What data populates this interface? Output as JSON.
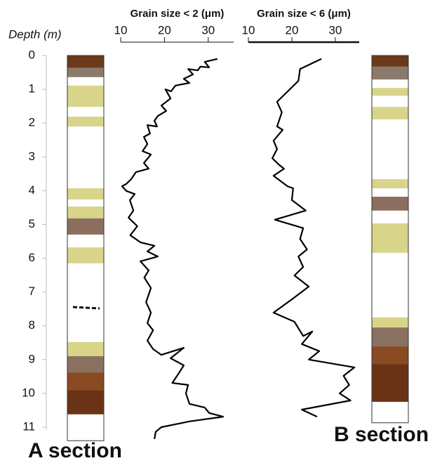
{
  "depth_axis": {
    "label": "Depth (m)",
    "ylim": [
      0,
      11
    ],
    "yticks": [
      0,
      1,
      2,
      3,
      4,
      5,
      6,
      7,
      8,
      9,
      10,
      11
    ]
  },
  "chart_data": [
    {
      "type": "line",
      "title": "Grain size < 2 (μm)",
      "color": "#000000",
      "xlim": [
        10,
        35.8
      ],
      "xticks": [
        10,
        20,
        30
      ],
      "depth": [
        0.1,
        0.19,
        0.35,
        0.33,
        0.44,
        0.4,
        0.56,
        0.69,
        0.81,
        0.89,
        1.06,
        1.0,
        1.27,
        1.48,
        1.64,
        1.79,
        1.93,
        2.1,
        2.06,
        2.31,
        2.41,
        2.62,
        2.83,
        2.93,
        3.18,
        3.35,
        3.45,
        3.66,
        3.8,
        3.87,
        4.01,
        4.1,
        4.28,
        4.59,
        4.8,
        5.05,
        5.32,
        5.53,
        5.63,
        5.8,
        5.95,
        6.09,
        6.36,
        6.57,
        6.88,
        7.3,
        7.61,
        7.92,
        8.13,
        8.44,
        8.69,
        8.86,
        8.65,
        8.96,
        9.17,
        9.38,
        9.69,
        9.75,
        10.0,
        10.31,
        10.42,
        10.58,
        10.69,
        10.83,
        11.0,
        11.14,
        11.35
      ],
      "values": [
        32.1,
        29.2,
        30.2,
        28.2,
        27.6,
        25.4,
        26.5,
        24.4,
        25.7,
        22.5,
        21.5,
        20.2,
        21.4,
        19.3,
        20.4,
        18.5,
        17.7,
        18.3,
        16.1,
        16.7,
        15.3,
        16.1,
        15.0,
        16.9,
        15.3,
        16.4,
        13.5,
        12.4,
        11.3,
        10.3,
        11.3,
        13.2,
        12.1,
        12.9,
        11.8,
        13.8,
        12.2,
        14.5,
        17.7,
        16.1,
        18.5,
        14.5,
        16.4,
        15.4,
        16.9,
        15.8,
        16.9,
        16.1,
        17.4,
        16.1,
        17.4,
        19.3,
        24.4,
        21.4,
        24.4,
        23.4,
        21.8,
        25.4,
        24.9,
        25.7,
        29.2,
        30.2,
        33.4,
        25.7,
        19.3,
        18.0,
        17.7
      ]
    },
    {
      "type": "line",
      "title": "Grain size < 6 (μm)",
      "color": "#000000",
      "xlim": [
        10,
        35.5
      ],
      "xticks": [
        10,
        20,
        30
      ],
      "depth": [
        0.1,
        0.4,
        0.75,
        1.37,
        1.68,
        2.1,
        2.2,
        2.52,
        2.77,
        3.04,
        3.24,
        3.35,
        3.56,
        3.87,
        3.93,
        4.28,
        4.59,
        4.86,
        5.11,
        5.43,
        5.74,
        5.95,
        6.26,
        6.51,
        6.84,
        7.19,
        7.61,
        7.88,
        8.3,
        8.17,
        8.54,
        8.75,
        9.0,
        9.23,
        9.48,
        9.75,
        10.0,
        10.21,
        10.48,
        10.69
      ],
      "values": [
        26.8,
        21.9,
        21.5,
        16.6,
        17.7,
        16.6,
        17.9,
        15.8,
        16.6,
        15.5,
        17.1,
        18.2,
        15.8,
        19.0,
        20.3,
        20.0,
        23.2,
        16.1,
        22.6,
        21.9,
        23.5,
        21.5,
        22.6,
        20.6,
        23.9,
        20.3,
        15.8,
        20.6,
        22.6,
        24.7,
        22.3,
        26.3,
        23.9,
        34.4,
        31.9,
        33.2,
        31.0,
        33.5,
        22.3,
        25.8
      ]
    }
  ],
  "sections": [
    {
      "label": "A section",
      "base": 11.4,
      "layers": [
        {
          "top": 0,
          "bottom": 0.37,
          "color": "#6b3a1a"
        },
        {
          "top": 0.37,
          "bottom": 0.64,
          "color": "#8a7a6c"
        },
        {
          "top": 0.89,
          "bottom": 1.52,
          "color": "#d8d48a"
        },
        {
          "top": 1.81,
          "bottom": 2.1,
          "color": "#d8d48a"
        },
        {
          "top": 3.93,
          "bottom": 4.26,
          "color": "#d8d48a"
        },
        {
          "top": 4.47,
          "bottom": 4.82,
          "color": "#d8d48a"
        },
        {
          "top": 4.82,
          "bottom": 5.3,
          "color": "#8b6e5e"
        },
        {
          "top": 5.68,
          "bottom": 6.15,
          "color": "#d8d48a"
        },
        {
          "top": 8.48,
          "bottom": 8.9,
          "color": "#d8d48a"
        },
        {
          "top": 8.9,
          "bottom": 9.38,
          "color": "#8a7060"
        },
        {
          "top": 9.38,
          "bottom": 9.9,
          "color": "#8a4a22"
        },
        {
          "top": 9.9,
          "bottom": 10.62,
          "color": "#6b3316"
        }
      ]
    },
    {
      "label": "B section",
      "base": 10.87,
      "layers": [
        {
          "top": 0,
          "bottom": 0.33,
          "color": "#6b3a1a"
        },
        {
          "top": 0.33,
          "bottom": 0.71,
          "color": "#8a7a6c"
        },
        {
          "top": 0.96,
          "bottom": 1.19,
          "color": "#d8d48a"
        },
        {
          "top": 1.52,
          "bottom": 1.89,
          "color": "#d8d48a"
        },
        {
          "top": 3.66,
          "bottom": 3.93,
          "color": "#d8d48a"
        },
        {
          "top": 4.18,
          "bottom": 4.59,
          "color": "#8b6e5e"
        },
        {
          "top": 4.97,
          "bottom": 5.84,
          "color": "#d8d48a"
        },
        {
          "top": 7.75,
          "bottom": 8.05,
          "color": "#d8d48a"
        },
        {
          "top": 8.05,
          "bottom": 8.61,
          "color": "#8a7060"
        },
        {
          "top": 8.61,
          "bottom": 9.13,
          "color": "#8a4a22"
        },
        {
          "top": 9.13,
          "bottom": 10.25,
          "color": "#6b3316"
        }
      ]
    }
  ]
}
